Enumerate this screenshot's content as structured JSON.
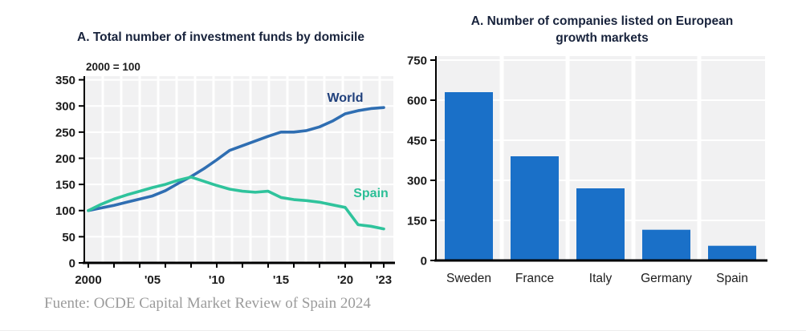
{
  "page": {
    "background": "#ffffff",
    "source_note": "Fuente: OCDE Capital Market Review of Spain 2024"
  },
  "colors": {
    "plot_background": "#f1f1f2",
    "gridline": "#ffffff",
    "axis": "#000000",
    "axis_text": "#1b1b1b",
    "title_text": "#18233c",
    "world_line": "#2f6eb2",
    "world_label": "#20407c",
    "spain_line": "#2fc39c",
    "spain_label": "#2bbf97",
    "bar_blue": "#1a70c8"
  },
  "chart_data": [
    {
      "type": "line",
      "title": "A. Total number of investment funds by domicile",
      "subtitle": "2000 = 100",
      "x": [
        2000,
        2001,
        2002,
        2003,
        2004,
        2005,
        2006,
        2007,
        2008,
        2009,
        2010,
        2011,
        2012,
        2013,
        2014,
        2015,
        2016,
        2017,
        2018,
        2019,
        2020,
        2021,
        2022,
        2023
      ],
      "x_tick_labels": [
        "2000",
        "'05",
        "'10",
        "'15",
        "'20",
        "'23"
      ],
      "x_tick_years": [
        2000,
        2005,
        2010,
        2015,
        2020,
        2023
      ],
      "ylim": [
        0,
        350
      ],
      "y_ticks": [
        0,
        50,
        100,
        150,
        200,
        250,
        300,
        350
      ],
      "grid": true,
      "legend_position": "inline-labels",
      "series": [
        {
          "name": "World",
          "color": "#2f6eb2",
          "label_color": "#20407c",
          "values": [
            100,
            105,
            110,
            116,
            122,
            128,
            138,
            152,
            165,
            180,
            197,
            215,
            224,
            233,
            242,
            250,
            250,
            253,
            260,
            271,
            285,
            291,
            295,
            297
          ]
        },
        {
          "name": "Spain",
          "color": "#2fc39c",
          "label_color": "#2bbf97",
          "values": [
            100,
            112,
            122,
            130,
            137,
            144,
            150,
            158,
            164,
            156,
            148,
            141,
            137,
            135,
            137,
            125,
            121,
            119,
            116,
            111,
            106,
            73,
            70,
            65
          ]
        }
      ]
    },
    {
      "type": "bar",
      "title": "A. Number of companies listed on European growth markets",
      "title_lines": [
        "A. Number of companies listed on European",
        "growth markets"
      ],
      "categories": [
        "Sweden",
        "France",
        "Italy",
        "Germany",
        "Spain"
      ],
      "values": [
        630,
        390,
        270,
        115,
        55
      ],
      "bar_color": "#1a70c8",
      "xlabel": "",
      "ylabel": "",
      "ylim": [
        0,
        750
      ],
      "y_ticks": [
        0,
        150,
        300,
        450,
        600,
        750
      ],
      "grid": true,
      "legend_position": "none"
    }
  ]
}
